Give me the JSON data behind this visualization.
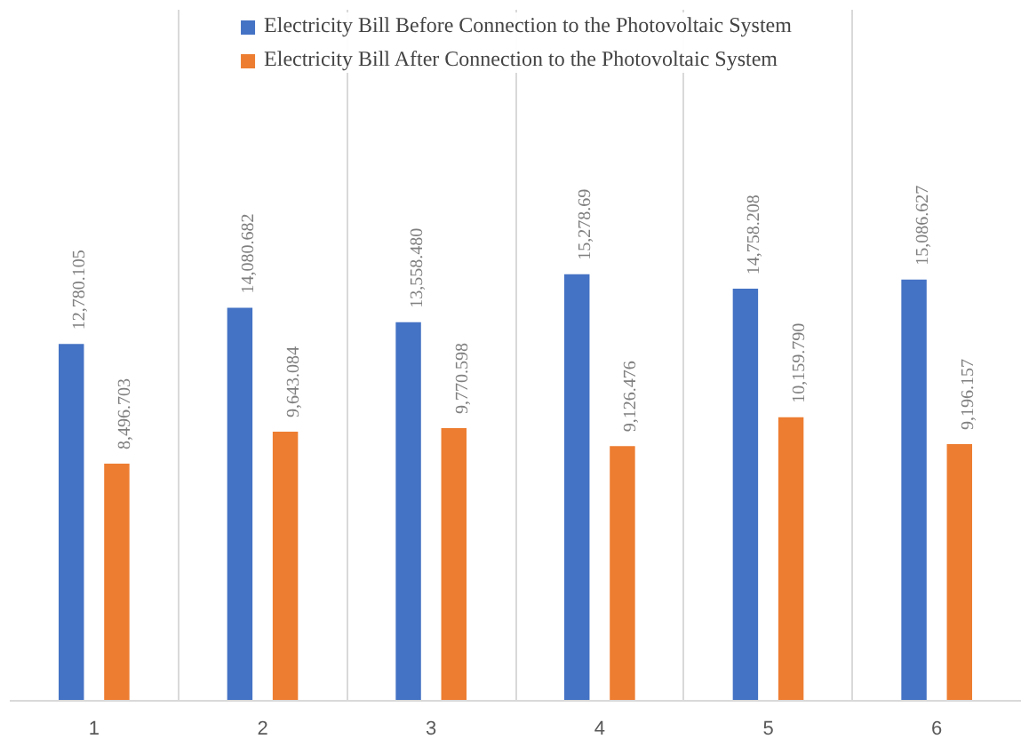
{
  "chart_data": {
    "type": "bar",
    "categories": [
      "1",
      "2",
      "3",
      "4",
      "5",
      "6"
    ],
    "series": [
      {
        "name": "Electricity Bill Before Connection to the Photovoltaic System",
        "color": "#4472c4",
        "values": [
          12780.105,
          14080.682,
          13558.48,
          15278.69,
          14758.208,
          15086.627
        ],
        "value_labels": [
          "12,780.105",
          "14,080.682",
          "13,558.480",
          "15,278.69",
          "14,758.208",
          "15,086.627"
        ]
      },
      {
        "name": "Electricity Bill After Connection to the Photovoltaic System",
        "color": "#ed7d31",
        "values": [
          8496.703,
          9643.084,
          9770.598,
          9126.476,
          10159.79,
          9196.157
        ],
        "value_labels": [
          "8,496.703",
          "9,643.084",
          "9,770.598",
          "9,126.476",
          "10,159.790",
          "9,196.157"
        ]
      }
    ],
    "grid": "x",
    "legend": "top"
  }
}
